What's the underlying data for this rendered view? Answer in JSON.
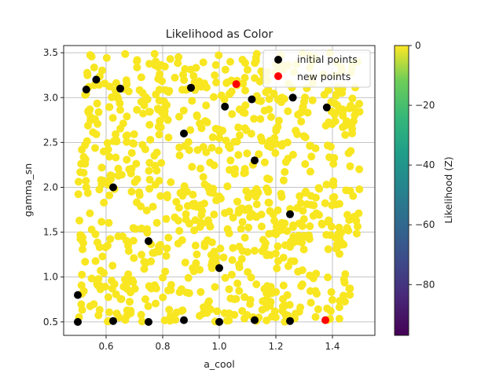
{
  "chart_data": {
    "type": "scatter",
    "title": "Likelihood as Color",
    "xlabel": "a_cool",
    "ylabel": "gamma_sn",
    "xlim": [
      0.45,
      1.55
    ],
    "ylim": [
      0.35,
      3.58
    ],
    "xticks": [
      0.6,
      0.8,
      1.0,
      1.2,
      1.4
    ],
    "xtick_labels": [
      "0.6",
      "0.8",
      "1.0",
      "1.2",
      "1.4"
    ],
    "yticks": [
      0.5,
      1.0,
      1.5,
      2.0,
      2.5,
      3.0,
      3.5
    ],
    "ytick_labels": [
      "0.5",
      "1.0",
      "1.5",
      "2.0",
      "2.5",
      "3.0",
      "3.5"
    ],
    "grid": true,
    "legend_position": "top-right",
    "background_samples": {
      "description_color": "#f8e621",
      "x_range": [
        0.5,
        1.5
      ],
      "y_range": [
        0.5,
        3.5
      ],
      "likelihood_value": 0
    },
    "series": [
      {
        "name": "initial points",
        "color": "#000000",
        "points": [
          [
            0.5,
            0.5
          ],
          [
            0.625,
            0.51
          ],
          [
            0.75,
            0.5
          ],
          [
            0.875,
            0.52
          ],
          [
            1.0,
            0.5
          ],
          [
            1.125,
            0.52
          ],
          [
            1.25,
            0.51
          ],
          [
            0.5,
            0.8
          ],
          [
            0.75,
            1.4
          ],
          [
            1.0,
            1.1
          ],
          [
            0.625,
            2.0
          ],
          [
            1.25,
            1.7
          ],
          [
            1.125,
            2.3
          ],
          [
            0.875,
            2.6
          ],
          [
            1.02,
            2.9
          ],
          [
            1.115,
            2.98
          ],
          [
            1.26,
            3.0
          ],
          [
            1.38,
            2.89
          ],
          [
            0.9,
            3.11
          ],
          [
            0.65,
            3.1
          ],
          [
            0.53,
            3.09
          ],
          [
            0.565,
            3.2
          ]
        ]
      },
      {
        "name": "new points",
        "color": "#ff0000",
        "points": [
          [
            1.06,
            3.15
          ],
          [
            1.375,
            0.52
          ]
        ]
      }
    ],
    "colorbar": {
      "label": "Likelihood (Z)",
      "range": [
        -97,
        0
      ],
      "ticks": [
        0,
        -20,
        -40,
        -60,
        -80
      ],
      "tick_labels": [
        "0",
        "−20",
        "−40",
        "−60",
        "−80"
      ],
      "colormap": "viridis"
    }
  }
}
